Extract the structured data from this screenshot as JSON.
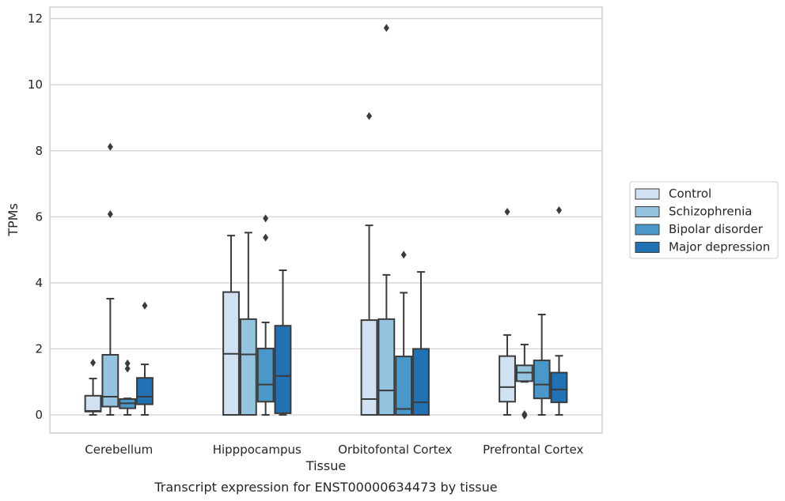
{
  "caption": "Transcript expression for ENST00000634473 by tissue",
  "chart_data": {
    "type": "box",
    "xlabel": "Tissue",
    "ylabel": "TPMs",
    "ylim": [
      -0.55,
      12.35
    ],
    "yticks": [
      0,
      2,
      4,
      6,
      8,
      10,
      12
    ],
    "grid": true,
    "legend_position": "right",
    "categories": [
      "Cerebellum",
      "Hipppocampus",
      "Orbitofontal Cortex",
      "Prefrontal Cortex"
    ],
    "series": [
      {
        "name": "Control",
        "color": "#d0e1f2",
        "boxes": [
          {
            "whislo": 0.0,
            "q1": 0.1,
            "med": 0.12,
            "q3": 0.58,
            "whishi": 1.1,
            "fliers": [
              1.58
            ]
          },
          {
            "whislo": 0.0,
            "q1": 0.0,
            "med": 1.85,
            "q3": 3.72,
            "whishi": 5.43,
            "fliers": []
          },
          {
            "whislo": 0.0,
            "q1": 0.0,
            "med": 0.48,
            "q3": 2.87,
            "whishi": 5.74,
            "fliers": [
              9.05
            ]
          },
          {
            "whislo": 0.0,
            "q1": 0.4,
            "med": 0.84,
            "q3": 1.78,
            "whishi": 2.42,
            "fliers": [
              6.15
            ]
          }
        ]
      },
      {
        "name": "Schizophrenia",
        "color": "#94c4df",
        "boxes": [
          {
            "whislo": 0.0,
            "q1": 0.25,
            "med": 0.55,
            "q3": 1.82,
            "whishi": 3.52,
            "fliers": [
              6.08,
              8.12
            ]
          },
          {
            "whislo": 0.0,
            "q1": 0.0,
            "med": 1.83,
            "q3": 2.9,
            "whishi": 5.52,
            "fliers": []
          },
          {
            "whislo": 0.0,
            "q1": 0.0,
            "med": 0.74,
            "q3": 2.9,
            "whishi": 4.24,
            "fliers": [
              11.72
            ]
          },
          {
            "whislo": 1.0,
            "q1": 1.02,
            "med": 1.28,
            "q3": 1.5,
            "whishi": 2.13,
            "fliers": [
              0.02,
              -0.02
            ]
          }
        ]
      },
      {
        "name": "Bipolar disorder",
        "color": "#4a98c9",
        "boxes": [
          {
            "whislo": 0.0,
            "q1": 0.2,
            "med": 0.35,
            "q3": 0.48,
            "whishi": 0.5,
            "fliers": [
              1.4,
              1.56
            ]
          },
          {
            "whislo": 0.0,
            "q1": 0.4,
            "med": 0.92,
            "q3": 2.01,
            "whishi": 2.8,
            "fliers": [
              5.37,
              5.95
            ]
          },
          {
            "whislo": 0.0,
            "q1": 0.0,
            "med": 0.18,
            "q3": 1.77,
            "whishi": 3.7,
            "fliers": [
              4.85
            ]
          },
          {
            "whislo": 0.0,
            "q1": 0.5,
            "med": 0.92,
            "q3": 1.65,
            "whishi": 3.04,
            "fliers": []
          }
        ]
      },
      {
        "name": "Major depression",
        "color": "#2171b5",
        "boxes": [
          {
            "whislo": 0.0,
            "q1": 0.32,
            "med": 0.55,
            "q3": 1.12,
            "whishi": 1.53,
            "fliers": [
              3.31
            ]
          },
          {
            "whislo": 0.0,
            "q1": 0.05,
            "med": 1.18,
            "q3": 2.7,
            "whishi": 4.38,
            "fliers": []
          },
          {
            "whislo": 0.0,
            "q1": 0.0,
            "med": 0.38,
            "q3": 2.0,
            "whishi": 4.33,
            "fliers": []
          },
          {
            "whislo": 0.0,
            "q1": 0.38,
            "med": 0.77,
            "q3": 1.28,
            "whishi": 1.79,
            "fliers": [
              6.2
            ]
          }
        ]
      }
    ]
  },
  "colors": {
    "edge": "#3b3b3b",
    "grid": "#cfcfcf",
    "frame": "#cfcfcf",
    "text": "#262626"
  }
}
